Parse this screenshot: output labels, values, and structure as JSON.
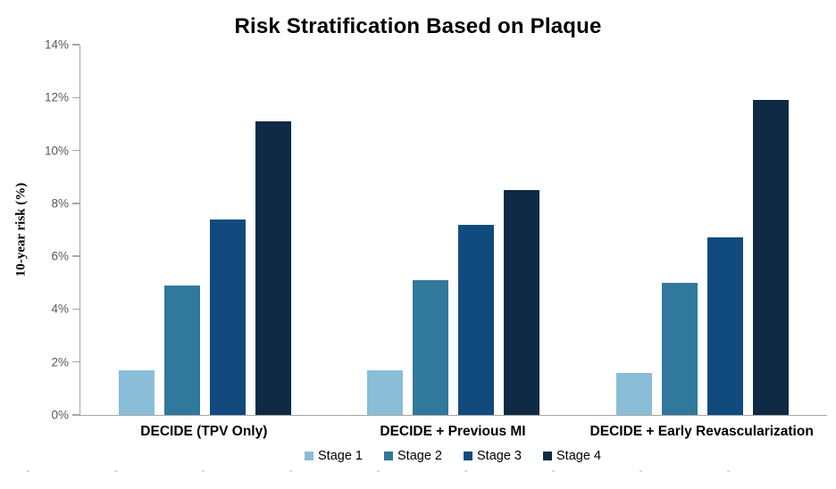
{
  "chart_data": {
    "type": "bar",
    "title": "Risk Stratification Based on Plaque",
    "xlabel": "",
    "ylabel": "10-year risk (%)",
    "ylim": [
      0,
      14
    ],
    "ytick_step": 2,
    "ytick_labels": [
      "0%",
      "2%",
      "4%",
      "6%",
      "8%",
      "10%",
      "12%",
      "14%"
    ],
    "grid": false,
    "legend_position": "bottom",
    "categories": [
      "DECIDE (TPV Only)",
      "DECIDE + Previous MI",
      "DECIDE + Early Revascularization"
    ],
    "series": [
      {
        "name": "Stage 1",
        "color": "#89BDD8",
        "values": [
          1.7,
          1.7,
          1.6
        ]
      },
      {
        "name": "Stage 2",
        "color": "#30789C",
        "values": [
          4.9,
          5.1,
          5.0
        ]
      },
      {
        "name": "Stage 3",
        "color": "#114B7E",
        "values": [
          7.4,
          7.2,
          6.7
        ]
      },
      {
        "name": "Stage 4",
        "color": "#0E2A45",
        "values": [
          11.1,
          8.5,
          11.9
        ]
      }
    ],
    "colors": {
      "axis": "#A6A6A6",
      "tick_label": "#595959",
      "title_text": "#000000",
      "background": "#FFFFFF"
    }
  }
}
